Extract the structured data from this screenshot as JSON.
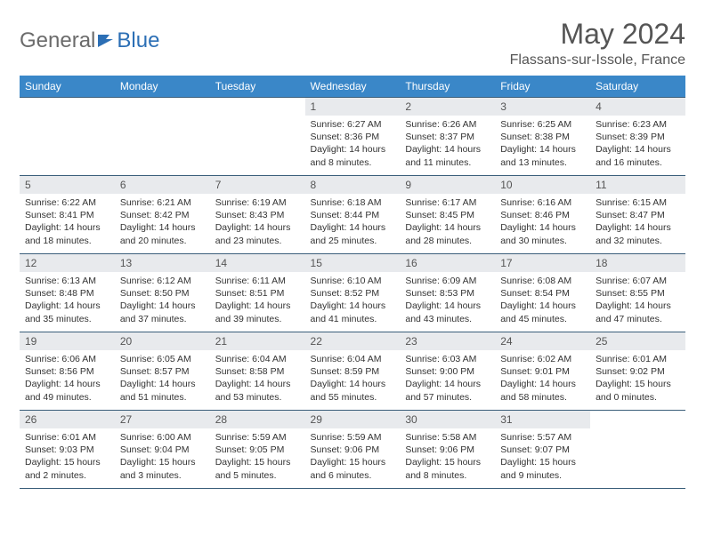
{
  "logo": {
    "general": "General",
    "blue": "Blue"
  },
  "title": "May 2024",
  "location": "Flassans-sur-Issole, France",
  "header_bg": "#3a87c8",
  "header_fg": "#ffffff",
  "daynum_bg": "#e8eaed",
  "border_color": "#3a5e7a",
  "weekdays": [
    "Sunday",
    "Monday",
    "Tuesday",
    "Wednesday",
    "Thursday",
    "Friday",
    "Saturday"
  ],
  "weeks": [
    [
      null,
      null,
      null,
      {
        "n": "1",
        "sr": "6:27 AM",
        "ss": "8:36 PM",
        "dl": "14 hours and 8 minutes."
      },
      {
        "n": "2",
        "sr": "6:26 AM",
        "ss": "8:37 PM",
        "dl": "14 hours and 11 minutes."
      },
      {
        "n": "3",
        "sr": "6:25 AM",
        "ss": "8:38 PM",
        "dl": "14 hours and 13 minutes."
      },
      {
        "n": "4",
        "sr": "6:23 AM",
        "ss": "8:39 PM",
        "dl": "14 hours and 16 minutes."
      }
    ],
    [
      {
        "n": "5",
        "sr": "6:22 AM",
        "ss": "8:41 PM",
        "dl": "14 hours and 18 minutes."
      },
      {
        "n": "6",
        "sr": "6:21 AM",
        "ss": "8:42 PM",
        "dl": "14 hours and 20 minutes."
      },
      {
        "n": "7",
        "sr": "6:19 AM",
        "ss": "8:43 PM",
        "dl": "14 hours and 23 minutes."
      },
      {
        "n": "8",
        "sr": "6:18 AM",
        "ss": "8:44 PM",
        "dl": "14 hours and 25 minutes."
      },
      {
        "n": "9",
        "sr": "6:17 AM",
        "ss": "8:45 PM",
        "dl": "14 hours and 28 minutes."
      },
      {
        "n": "10",
        "sr": "6:16 AM",
        "ss": "8:46 PM",
        "dl": "14 hours and 30 minutes."
      },
      {
        "n": "11",
        "sr": "6:15 AM",
        "ss": "8:47 PM",
        "dl": "14 hours and 32 minutes."
      }
    ],
    [
      {
        "n": "12",
        "sr": "6:13 AM",
        "ss": "8:48 PM",
        "dl": "14 hours and 35 minutes."
      },
      {
        "n": "13",
        "sr": "6:12 AM",
        "ss": "8:50 PM",
        "dl": "14 hours and 37 minutes."
      },
      {
        "n": "14",
        "sr": "6:11 AM",
        "ss": "8:51 PM",
        "dl": "14 hours and 39 minutes."
      },
      {
        "n": "15",
        "sr": "6:10 AM",
        "ss": "8:52 PM",
        "dl": "14 hours and 41 minutes."
      },
      {
        "n": "16",
        "sr": "6:09 AM",
        "ss": "8:53 PM",
        "dl": "14 hours and 43 minutes."
      },
      {
        "n": "17",
        "sr": "6:08 AM",
        "ss": "8:54 PM",
        "dl": "14 hours and 45 minutes."
      },
      {
        "n": "18",
        "sr": "6:07 AM",
        "ss": "8:55 PM",
        "dl": "14 hours and 47 minutes."
      }
    ],
    [
      {
        "n": "19",
        "sr": "6:06 AM",
        "ss": "8:56 PM",
        "dl": "14 hours and 49 minutes."
      },
      {
        "n": "20",
        "sr": "6:05 AM",
        "ss": "8:57 PM",
        "dl": "14 hours and 51 minutes."
      },
      {
        "n": "21",
        "sr": "6:04 AM",
        "ss": "8:58 PM",
        "dl": "14 hours and 53 minutes."
      },
      {
        "n": "22",
        "sr": "6:04 AM",
        "ss": "8:59 PM",
        "dl": "14 hours and 55 minutes."
      },
      {
        "n": "23",
        "sr": "6:03 AM",
        "ss": "9:00 PM",
        "dl": "14 hours and 57 minutes."
      },
      {
        "n": "24",
        "sr": "6:02 AM",
        "ss": "9:01 PM",
        "dl": "14 hours and 58 minutes."
      },
      {
        "n": "25",
        "sr": "6:01 AM",
        "ss": "9:02 PM",
        "dl": "15 hours and 0 minutes."
      }
    ],
    [
      {
        "n": "26",
        "sr": "6:01 AM",
        "ss": "9:03 PM",
        "dl": "15 hours and 2 minutes."
      },
      {
        "n": "27",
        "sr": "6:00 AM",
        "ss": "9:04 PM",
        "dl": "15 hours and 3 minutes."
      },
      {
        "n": "28",
        "sr": "5:59 AM",
        "ss": "9:05 PM",
        "dl": "15 hours and 5 minutes."
      },
      {
        "n": "29",
        "sr": "5:59 AM",
        "ss": "9:06 PM",
        "dl": "15 hours and 6 minutes."
      },
      {
        "n": "30",
        "sr": "5:58 AM",
        "ss": "9:06 PM",
        "dl": "15 hours and 8 minutes."
      },
      {
        "n": "31",
        "sr": "5:57 AM",
        "ss": "9:07 PM",
        "dl": "15 hours and 9 minutes."
      },
      null
    ]
  ]
}
